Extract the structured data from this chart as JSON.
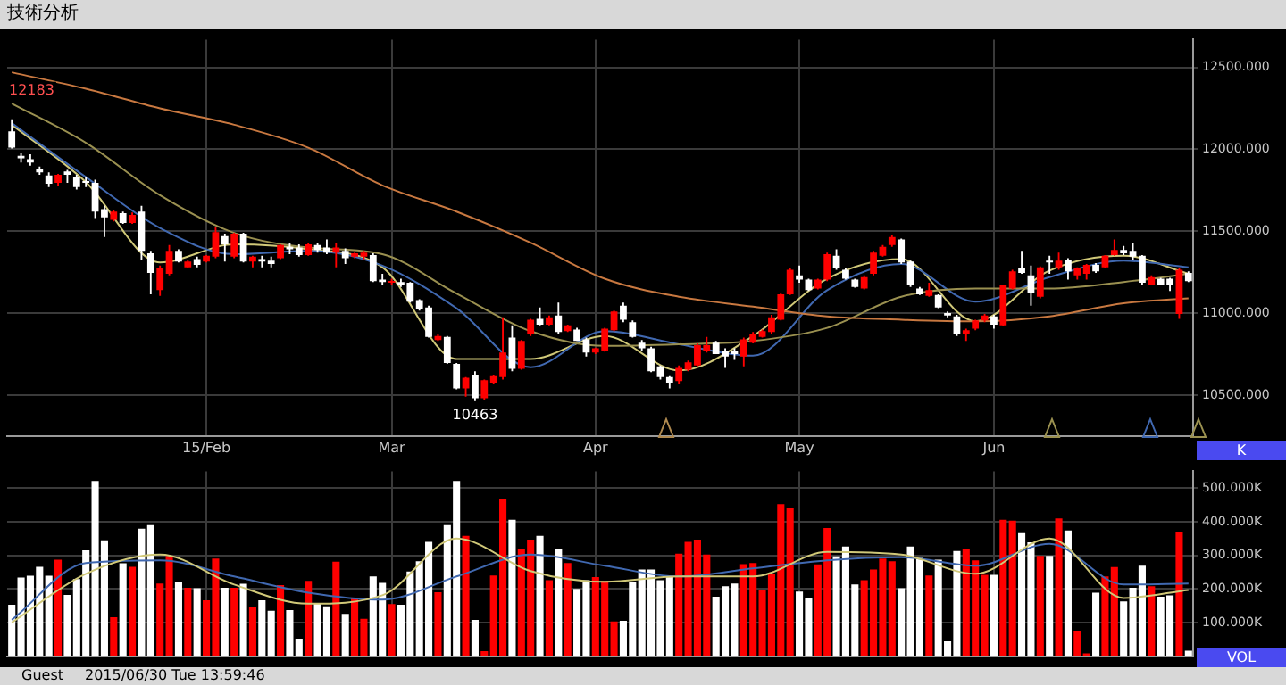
{
  "chart_data": [
    {
      "type": "candlestick",
      "title": "技術分析",
      "categories": [
        null,
        null,
        null,
        null,
        null,
        null,
        null,
        null,
        null,
        null,
        null,
        null,
        null,
        null,
        null,
        null,
        null,
        null,
        null,
        null,
        null,
        "15/Feb",
        null,
        null,
        null,
        null,
        null,
        null,
        null,
        null,
        null,
        null,
        null,
        null,
        null,
        null,
        null,
        null,
        null,
        null,
        null,
        "Mar",
        null,
        null,
        null,
        null,
        null,
        null,
        null,
        null,
        null,
        null,
        null,
        null,
        null,
        null,
        null,
        null,
        null,
        null,
        null,
        null,
        null,
        "Apr",
        null,
        null,
        null,
        null,
        null,
        null,
        null,
        null,
        null,
        null,
        null,
        null,
        null,
        null,
        null,
        null,
        null,
        null,
        null,
        null,
        null,
        "May",
        null,
        null,
        null,
        null,
        null,
        null,
        null,
        null,
        null,
        null,
        null,
        null,
        null,
        null,
        null,
        null,
        null,
        null,
        null,
        null,
        "Jun",
        null,
        null,
        null,
        null,
        null,
        null,
        null,
        null,
        null,
        null,
        null,
        null,
        null,
        null,
        null,
        null,
        null,
        null,
        null,
        null,
        null
      ],
      "ohlc": [
        [
          12110,
          12183,
          12005,
          12010
        ],
        [
          11960,
          11975,
          11920,
          11945
        ],
        [
          11940,
          11970,
          11900,
          11920
        ],
        [
          11880,
          11895,
          11845,
          11860
        ],
        [
          11840,
          11860,
          11770,
          11790
        ],
        [
          11795,
          11850,
          11775,
          11845
        ],
        [
          11865,
          11875,
          11795,
          11845
        ],
        [
          11830,
          11845,
          11755,
          11770
        ],
        [
          11805,
          11830,
          11770,
          11795
        ],
        [
          11795,
          11815,
          11580,
          11620
        ],
        [
          11635,
          11655,
          11465,
          11585
        ],
        [
          11570,
          11630,
          11560,
          11620
        ],
        [
          11610,
          11620,
          11545,
          11550
        ],
        [
          11550,
          11615,
          11545,
          11600
        ],
        [
          11620,
          11655,
          11325,
          11380
        ],
        [
          11365,
          11380,
          11115,
          11245
        ],
        [
          11140,
          11290,
          11105,
          11275
        ],
        [
          11240,
          11415,
          11230,
          11380
        ],
        [
          11380,
          11390,
          11310,
          11315
        ],
        [
          11280,
          11325,
          11275,
          11315
        ],
        [
          11330,
          11345,
          11280,
          11295
        ],
        [
          11315,
          11355,
          11310,
          11350
        ],
        [
          11345,
          11525,
          11335,
          11495
        ],
        [
          11470,
          11485,
          11315,
          11420
        ],
        [
          11345,
          11490,
          11335,
          11485
        ],
        [
          11485,
          11490,
          11310,
          11315
        ],
        [
          11315,
          11350,
          11280,
          11345
        ],
        [
          11330,
          11350,
          11280,
          11315
        ],
        [
          11320,
          11345,
          11280,
          11300
        ],
        [
          11335,
          11420,
          11330,
          11415
        ],
        [
          11405,
          11430,
          11360,
          11390
        ],
        [
          11400,
          11420,
          11345,
          11355
        ],
        [
          11355,
          11430,
          11350,
          11420
        ],
        [
          11415,
          11425,
          11370,
          11385
        ],
        [
          11400,
          11450,
          11360,
          11370
        ],
        [
          11370,
          11430,
          11280,
          11400
        ],
        [
          11380,
          11395,
          11300,
          11335
        ],
        [
          11345,
          11370,
          11335,
          11365
        ],
        [
          11345,
          11380,
          11325,
          11370
        ],
        [
          11355,
          11365,
          11190,
          11195
        ],
        [
          11205,
          11240,
          11175,
          11190
        ],
        [
          11185,
          11210,
          11170,
          11195
        ],
        [
          11190,
          11210,
          11160,
          11175
        ],
        [
          11185,
          11190,
          11065,
          11070
        ],
        [
          11080,
          11085,
          11015,
          11025
        ],
        [
          11035,
          11045,
          10850,
          10855
        ],
        [
          10835,
          10870,
          10830,
          10860
        ],
        [
          10855,
          10860,
          10690,
          10695
        ],
        [
          10690,
          10695,
          10535,
          10540
        ],
        [
          10540,
          10610,
          10490,
          10605
        ],
        [
          10625,
          10645,
          10463,
          10480
        ],
        [
          10480,
          10595,
          10470,
          10590
        ],
        [
          10575,
          10625,
          10570,
          10620
        ],
        [
          10610,
          10975,
          10595,
          10760
        ],
        [
          10850,
          10925,
          10645,
          10660
        ],
        [
          10660,
          10835,
          10655,
          10830
        ],
        [
          10870,
          10965,
          10860,
          10960
        ],
        [
          10965,
          11035,
          10925,
          10930
        ],
        [
          10930,
          10985,
          10925,
          10975
        ],
        [
          10985,
          11065,
          10875,
          10885
        ],
        [
          10890,
          10930,
          10885,
          10925
        ],
        [
          10900,
          10910,
          10830,
          10830
        ],
        [
          10840,
          10850,
          10735,
          10760
        ],
        [
          10760,
          10790,
          10750,
          10785
        ],
        [
          10770,
          10910,
          10765,
          10905
        ],
        [
          10895,
          11015,
          10890,
          11010
        ],
        [
          11045,
          11065,
          10945,
          10960
        ],
        [
          10945,
          10955,
          10850,
          10855
        ],
        [
          10820,
          10835,
          10770,
          10785
        ],
        [
          10785,
          10795,
          10640,
          10645
        ],
        [
          10675,
          10680,
          10595,
          10610
        ],
        [
          10610,
          10620,
          10540,
          10575
        ],
        [
          10585,
          10680,
          10570,
          10665
        ],
        [
          10655,
          10710,
          10645,
          10700
        ],
        [
          10680,
          10815,
          10675,
          10805
        ],
        [
          10770,
          10855,
          10760,
          10805
        ],
        [
          10820,
          10830,
          10750,
          10750
        ],
        [
          10770,
          10785,
          10665,
          10735
        ],
        [
          10770,
          10785,
          10715,
          10750
        ],
        [
          10735,
          10850,
          10675,
          10840
        ],
        [
          10820,
          10885,
          10815,
          10875
        ],
        [
          10855,
          10900,
          10850,
          10890
        ],
        [
          10885,
          10990,
          10875,
          10975
        ],
        [
          10960,
          11125,
          10955,
          11115
        ],
        [
          11115,
          11275,
          11110,
          11265
        ],
        [
          11230,
          11290,
          11185,
          11205
        ],
        [
          11205,
          11210,
          11135,
          11140
        ],
        [
          11150,
          11210,
          11145,
          11205
        ],
        [
          11205,
          11370,
          11195,
          11360
        ],
        [
          11350,
          11390,
          11265,
          11275
        ],
        [
          11265,
          11275,
          11205,
          11210
        ],
        [
          11205,
          11210,
          11155,
          11160
        ],
        [
          11150,
          11230,
          11145,
          11220
        ],
        [
          11240,
          11380,
          11230,
          11370
        ],
        [
          11350,
          11415,
          11345,
          11405
        ],
        [
          11415,
          11475,
          11405,
          11465
        ],
        [
          11450,
          11455,
          11300,
          11310
        ],
        [
          11315,
          11320,
          11160,
          11170
        ],
        [
          11150,
          11160,
          11110,
          11115
        ],
        [
          11105,
          11185,
          11100,
          11140
        ],
        [
          11110,
          11115,
          11030,
          11035
        ],
        [
          11000,
          11010,
          10975,
          10985
        ],
        [
          10980,
          10990,
          10860,
          10875
        ],
        [
          10875,
          10905,
          10830,
          10895
        ],
        [
          10905,
          10960,
          10895,
          10955
        ],
        [
          10955,
          10995,
          10945,
          10985
        ],
        [
          10980,
          10990,
          10905,
          10930
        ],
        [
          10925,
          11175,
          10920,
          11170
        ],
        [
          11150,
          11265,
          11145,
          11255
        ],
        [
          11275,
          11380,
          11240,
          11245
        ],
        [
          11230,
          11290,
          11045,
          11125
        ],
        [
          11100,
          11285,
          11090,
          11280
        ],
        [
          11320,
          11350,
          11240,
          11310
        ],
        [
          11280,
          11370,
          11265,
          11320
        ],
        [
          11325,
          11335,
          11205,
          11255
        ],
        [
          11230,
          11280,
          11205,
          11275
        ],
        [
          11240,
          11300,
          11205,
          11295
        ],
        [
          11295,
          11305,
          11245,
          11255
        ],
        [
          11280,
          11355,
          11275,
          11350
        ],
        [
          11355,
          11450,
          11350,
          11385
        ],
        [
          11385,
          11410,
          11355,
          11365
        ],
        [
          11380,
          11425,
          11325,
          11345
        ],
        [
          11350,
          11355,
          11175,
          11185
        ],
        [
          11175,
          11230,
          11170,
          11220
        ],
        [
          11210,
          11215,
          11170,
          11175
        ],
        [
          11210,
          11215,
          11135,
          11175
        ],
        [
          10995,
          11275,
          10965,
          11265
        ],
        [
          11245,
          11255,
          11190,
          11195
        ]
      ],
      "colors": [
        "#ffffff",
        "#ffffff",
        "#ffffff",
        "#ffffff",
        "#ffffff",
        "#ff0000",
        "#ffffff",
        "#ffffff",
        "#ffffff",
        "#ffffff",
        "#ffffff",
        "#ff0000",
        "#ffffff",
        "#ff0000",
        "#ffffff",
        "#ffffff",
        "#ff0000",
        "#ff0000",
        "#ffffff",
        "#ff0000",
        "#ffffff",
        "#ff0000",
        "#ff0000",
        "#ffffff",
        "#ff0000",
        "#ffffff",
        "#ff0000",
        "#ffffff",
        "#ffffff",
        "#ff0000",
        "#ffffff",
        "#ffffff",
        "#ff0000",
        "#ffffff",
        "#ffffff",
        "#ff0000",
        "#ffffff",
        "#ff0000",
        "#ff0000",
        "#ffffff",
        "#ffffff",
        "#ff0000",
        "#ffffff",
        "#ffffff",
        "#ffffff",
        "#ffffff",
        "#ff0000",
        "#ffffff",
        "#ffffff",
        "#ff0000",
        "#ffffff",
        "#ff0000",
        "#ff0000",
        "#ff0000",
        "#ffffff",
        "#ff0000",
        "#ff0000",
        "#ffffff",
        "#ff0000",
        "#ffffff",
        "#ff0000",
        "#ffffff",
        "#ffffff",
        "#ff0000",
        "#ff0000",
        "#ff0000",
        "#ffffff",
        "#ffffff",
        "#ffffff",
        "#ffffff",
        "#ffffff",
        "#ffffff",
        "#ff0000",
        "#ff0000",
        "#ff0000",
        "#ff0000",
        "#ffffff",
        "#ffffff",
        "#ffffff",
        "#ff0000",
        "#ff0000",
        "#ff0000",
        "#ff0000",
        "#ff0000",
        "#ff0000",
        "#ffffff",
        "#ffffff",
        "#ff0000",
        "#ff0000",
        "#ffffff",
        "#ffffff",
        "#ffffff",
        "#ff0000",
        "#ff0000",
        "#ff0000",
        "#ff0000",
        "#ffffff",
        "#ffffff",
        "#ffffff",
        "#ff0000",
        "#ffffff",
        "#ffffff",
        "#ffffff",
        "#ff0000",
        "#ff0000",
        "#ff0000",
        "#ffffff",
        "#ff0000",
        "#ff0000",
        "#ffffff",
        "#ffffff",
        "#ff0000",
        "#ffffff",
        "#ff0000",
        "#ffffff",
        "#ff0000",
        "#ff0000",
        "#ffffff",
        "#ff0000",
        "#ff0000",
        "#ffffff",
        "#ffffff",
        "#ffffff",
        "#ff0000",
        "#ffffff",
        "#ffffff",
        "#ff0000",
        "#ffffff"
      ],
      "series": [
        {
          "type": "line",
          "color": "#c87840",
          "values": [
            12470,
            null,
            null,
            null,
            null,
            null,
            null,
            null,
            12370,
            null,
            null,
            null,
            null,
            null,
            null,
            null,
            12250,
            null,
            null,
            null,
            null,
            null,
            null,
            null,
            12150,
            null,
            null,
            null,
            null,
            null,
            null,
            null,
            12010,
            null,
            null,
            null,
            null,
            null,
            null,
            null,
            11780,
            null,
            null,
            null,
            null,
            null,
            null,
            null,
            11620,
            null,
            null,
            null,
            null,
            null,
            null,
            null,
            11430,
            null,
            null,
            null,
            null,
            null,
            null,
            null,
            11210,
            null,
            null,
            null,
            null,
            null,
            null,
            null,
            11100,
            null,
            null,
            null,
            null,
            null,
            null,
            null,
            11040,
            null,
            null,
            null,
            null,
            null,
            null,
            null,
            10980,
            null,
            null,
            null,
            null,
            null,
            null,
            null,
            10960,
            null,
            null,
            null,
            null,
            null,
            null,
            null,
            10950,
            null,
            null,
            null,
            null,
            null,
            null,
            null,
            10980,
            null,
            null,
            null,
            null,
            null,
            null,
            null,
            11060,
            null,
            null,
            null,
            null,
            null,
            null,
            11090
          ]
        },
        {
          "type": "line",
          "color": "#9a9050",
          "values": [
            12280,
            null,
            null,
            null,
            null,
            null,
            null,
            null,
            12040,
            null,
            null,
            null,
            null,
            null,
            null,
            null,
            11720,
            null,
            null,
            null,
            null,
            null,
            null,
            null,
            11490,
            null,
            null,
            null,
            null,
            null,
            null,
            null,
            11400,
            null,
            null,
            null,
            null,
            null,
            null,
            null,
            11360,
            null,
            null,
            null,
            null,
            null,
            null,
            null,
            11120,
            null,
            null,
            null,
            null,
            null,
            null,
            null,
            10890,
            null,
            null,
            null,
            null,
            null,
            null,
            null,
            10800,
            null,
            null,
            null,
            null,
            null,
            null,
            null,
            10810,
            null,
            null,
            null,
            null,
            null,
            null,
            null,
            10830,
            null,
            null,
            null,
            null,
            null,
            null,
            null,
            10910,
            null,
            null,
            null,
            null,
            null,
            null,
            null,
            11100,
            null,
            null,
            null,
            null,
            null,
            null,
            null,
            11150,
            null,
            null,
            null,
            null,
            null,
            null,
            null,
            11150,
            null,
            null,
            null,
            null,
            null,
            null,
            null,
            11190,
            null,
            null,
            null,
            null,
            null,
            null,
            11240
          ]
        },
        {
          "type": "line",
          "color": "#4068b0",
          "values": [
            12160,
            null,
            null,
            null,
            null,
            null,
            null,
            null,
            11830,
            null,
            null,
            null,
            null,
            null,
            null,
            null,
            11520,
            null,
            null,
            null,
            null,
            null,
            null,
            null,
            11360,
            null,
            null,
            null,
            null,
            null,
            null,
            null,
            11380,
            null,
            null,
            null,
            null,
            null,
            null,
            null,
            11290,
            null,
            null,
            null,
            null,
            null,
            null,
            null,
            11030,
            null,
            null,
            null,
            null,
            null,
            null,
            null,
            10670,
            null,
            null,
            null,
            null,
            null,
            null,
            null,
            10890,
            null,
            null,
            null,
            null,
            null,
            null,
            null,
            10810,
            null,
            null,
            null,
            null,
            null,
            null,
            null,
            10740,
            null,
            null,
            null,
            null,
            null,
            null,
            null,
            11140,
            null,
            null,
            null,
            null,
            null,
            null,
            null,
            11300,
            null,
            null,
            null,
            null,
            null,
            null,
            null,
            11070,
            null,
            null,
            null,
            null,
            null,
            null,
            null,
            11220,
            null,
            null,
            null,
            null,
            null,
            null,
            null,
            11320,
            null,
            null,
            null,
            null,
            null,
            null,
            11280
          ]
        },
        {
          "type": "line",
          "color": "#d0c878",
          "values": [
            12150,
            null,
            null,
            null,
            null,
            null,
            null,
            null,
            11800,
            null,
            null,
            null,
            null,
            null,
            null,
            null,
            11310,
            null,
            null,
            null,
            null,
            null,
            null,
            null,
            11420,
            null,
            null,
            null,
            null,
            null,
            null,
            null,
            11390,
            null,
            null,
            null,
            null,
            null,
            null,
            null,
            11280,
            null,
            null,
            null,
            null,
            null,
            null,
            null,
            10720,
            null,
            null,
            null,
            null,
            null,
            null,
            null,
            10720,
            null,
            null,
            null,
            null,
            null,
            null,
            null,
            10860,
            null,
            null,
            null,
            null,
            null,
            null,
            null,
            10650,
            null,
            null,
            null,
            null,
            null,
            null,
            null,
            10860,
            null,
            null,
            null,
            null,
            null,
            null,
            null,
            11210,
            null,
            null,
            null,
            null,
            null,
            null,
            null,
            11330,
            null,
            null,
            null,
            null,
            null,
            null,
            null,
            10950,
            null,
            null,
            null,
            null,
            null,
            null,
            null,
            11260,
            null,
            null,
            null,
            null,
            null,
            null,
            null,
            11350,
            null,
            null,
            null,
            null,
            null,
            null,
            11240
          ]
        }
      ],
      "ylim": [
        10250,
        12670
      ],
      "yticks": [
        {
          "value": 10500,
          "label": "10500.000"
        },
        {
          "value": 11000,
          "label": "11000.000"
        },
        {
          "value": 11500,
          "label": "11500.000"
        },
        {
          "value": 12000,
          "label": "12000.000"
        },
        {
          "value": 12500,
          "label": "12500.000"
        }
      ],
      "grid": true,
      "annotations": [
        "K",
        "12183",
        "10463"
      ]
    },
    {
      "type": "bar",
      "categories": [
        null,
        null,
        null,
        null,
        null,
        null,
        null,
        null,
        null,
        null,
        null,
        null,
        null,
        null,
        null,
        null,
        null,
        null,
        null,
        null,
        null,
        null,
        null,
        null,
        null,
        null,
        null,
        null,
        null,
        null,
        null,
        null,
        null,
        null,
        null,
        null,
        null,
        null,
        null,
        null,
        null,
        null,
        null,
        null,
        null,
        null,
        null,
        null,
        null,
        null,
        null,
        null,
        null,
        null,
        null,
        null,
        null,
        null,
        null,
        null,
        null,
        null,
        null,
        null,
        null,
        null,
        null,
        null,
        null,
        null,
        null,
        null,
        null,
        null,
        null,
        null,
        null,
        null,
        null,
        null,
        null,
        null,
        null,
        null,
        null,
        null,
        null,
        null,
        null,
        null,
        null,
        null,
        null,
        null,
        null,
        null,
        null,
        null,
        null,
        null,
        null,
        null,
        null,
        null,
        null,
        null,
        null,
        null,
        null,
        null,
        null,
        null,
        null,
        null,
        null,
        null,
        null,
        null,
        null,
        null,
        null,
        null,
        null,
        null,
        null,
        null,
        null,
        null
      ],
      "values": [
        153,
        234,
        239,
        266,
        239,
        287,
        182,
        229,
        315,
        521,
        345,
        116,
        276,
        266,
        379,
        390,
        216,
        298,
        219,
        203,
        202,
        166,
        290,
        203,
        203,
        215,
        145,
        166,
        135,
        211,
        137,
        52,
        224,
        158,
        148,
        281,
        126,
        174,
        111,
        237,
        218,
        155,
        153,
        252,
        282,
        340,
        190,
        390,
        521,
        358,
        108,
        15,
        240,
        468,
        406,
        319,
        347,
        358,
        226,
        318,
        277,
        200,
        226,
        235,
        223,
        103,
        105,
        219,
        258,
        258,
        226,
        237,
        305,
        340,
        347,
        302,
        177,
        208,
        216,
        274,
        277,
        198,
        245,
        452,
        440,
        192,
        173,
        273,
        381,
        297,
        326,
        213,
        226,
        258,
        290,
        282,
        202,
        326,
        292,
        240,
        287,
        44,
        313,
        318,
        285,
        242,
        242,
        406,
        403,
        366,
        339,
        298,
        298,
        410,
        374,
        73,
        8,
        189,
        237,
        265,
        163,
        203,
        269,
        208,
        177,
        181,
        369,
        16
      ],
      "colors": [
        "#ffffff",
        "#ffffff",
        "#ffffff",
        "#ffffff",
        "#ffffff",
        "#ff0000",
        "#ffffff",
        "#ffffff",
        "#ffffff",
        "#ffffff",
        "#ffffff",
        "#ff0000",
        "#ffffff",
        "#ff0000",
        "#ffffff",
        "#ffffff",
        "#ff0000",
        "#ff0000",
        "#ffffff",
        "#ff0000",
        "#ffffff",
        "#ff0000",
        "#ff0000",
        "#ffffff",
        "#ff0000",
        "#ffffff",
        "#ff0000",
        "#ffffff",
        "#ffffff",
        "#ff0000",
        "#ffffff",
        "#ffffff",
        "#ff0000",
        "#ffffff",
        "#ffffff",
        "#ff0000",
        "#ffffff",
        "#ff0000",
        "#ff0000",
        "#ffffff",
        "#ffffff",
        "#ff0000",
        "#ffffff",
        "#ffffff",
        "#ffffff",
        "#ffffff",
        "#ff0000",
        "#ffffff",
        "#ffffff",
        "#ff0000",
        "#ffffff",
        "#ff0000",
        "#ff0000",
        "#ff0000",
        "#ffffff",
        "#ff0000",
        "#ff0000",
        "#ffffff",
        "#ff0000",
        "#ffffff",
        "#ff0000",
        "#ffffff",
        "#ffffff",
        "#ff0000",
        "#ff0000",
        "#ff0000",
        "#ffffff",
        "#ffffff",
        "#ffffff",
        "#ffffff",
        "#ffffff",
        "#ffffff",
        "#ff0000",
        "#ff0000",
        "#ff0000",
        "#ff0000",
        "#ffffff",
        "#ffffff",
        "#ffffff",
        "#ff0000",
        "#ff0000",
        "#ff0000",
        "#ff0000",
        "#ff0000",
        "#ff0000",
        "#ffffff",
        "#ffffff",
        "#ff0000",
        "#ff0000",
        "#ffffff",
        "#ffffff",
        "#ffffff",
        "#ff0000",
        "#ff0000",
        "#ff0000",
        "#ff0000",
        "#ffffff",
        "#ffffff",
        "#ffffff",
        "#ff0000",
        "#ffffff",
        "#ffffff",
        "#ffffff",
        "#ff0000",
        "#ff0000",
        "#ff0000",
        "#ffffff",
        "#ff0000",
        "#ff0000",
        "#ffffff",
        "#ffffff",
        "#ff0000",
        "#ffffff",
        "#ff0000",
        "#ffffff",
        "#ff0000",
        "#ff0000",
        "#ffffff",
        "#ff0000",
        "#ff0000",
        "#ffffff",
        "#ffffff",
        "#ffffff",
        "#ff0000",
        "#ffffff",
        "#ffffff",
        "#ff0000",
        "#ffffff"
      ],
      "series": [
        {
          "type": "line",
          "color": "#d0c878",
          "values": [
            100,
            null,
            null,
            null,
            null,
            null,
            null,
            null,
            245,
            null,
            null,
            null,
            null,
            null,
            null,
            null,
            302,
            null,
            null,
            null,
            null,
            null,
            null,
            null,
            213,
            null,
            null,
            null,
            null,
            null,
            null,
            null,
            156,
            null,
            null,
            null,
            null,
            null,
            null,
            null,
            181,
            null,
            null,
            null,
            null,
            null,
            null,
            null,
            350,
            null,
            null,
            null,
            null,
            null,
            null,
            null,
            253,
            null,
            null,
            null,
            null,
            null,
            null,
            null,
            221,
            null,
            null,
            null,
            null,
            null,
            null,
            null,
            237,
            null,
            null,
            null,
            null,
            null,
            null,
            null,
            237,
            null,
            null,
            null,
            null,
            null,
            null,
            null,
            310,
            null,
            null,
            null,
            null,
            null,
            null,
            null,
            302,
            null,
            null,
            null,
            null,
            null,
            null,
            null,
            245,
            null,
            null,
            null,
            null,
            null,
            null,
            null,
            350,
            null,
            null,
            null,
            null,
            null,
            null,
            null,
            173,
            null,
            null,
            null,
            null,
            null,
            null,
            197
          ]
        },
        {
          "type": "line",
          "color": "#4068b0",
          "values": [
            108,
            null,
            null,
            null,
            null,
            null,
            null,
            null,
            277,
            null,
            null,
            null,
            null,
            null,
            null,
            null,
            285,
            null,
            null,
            null,
            null,
            null,
            null,
            null,
            237,
            null,
            null,
            null,
            null,
            null,
            null,
            null,
            189,
            null,
            null,
            null,
            null,
            null,
            null,
            null,
            168,
            null,
            null,
            null,
            null,
            null,
            null,
            null,
            237,
            null,
            null,
            null,
            null,
            null,
            null,
            null,
            302,
            null,
            null,
            null,
            null,
            null,
            null,
            null,
            269,
            null,
            null,
            null,
            null,
            null,
            null,
            null,
            237,
            null,
            null,
            null,
            null,
            null,
            null,
            null,
            261,
            null,
            null,
            null,
            null,
            null,
            null,
            null,
            285,
            null,
            null,
            null,
            null,
            null,
            null,
            null,
            294,
            null,
            null,
            null,
            null,
            null,
            null,
            null,
            269,
            null,
            null,
            null,
            null,
            null,
            null,
            null,
            334,
            null,
            null,
            null,
            null,
            null,
            null,
            null,
            213,
            null,
            null,
            null,
            null,
            null,
            null,
            216
          ]
        }
      ],
      "ylim": [
        0,
        550
      ],
      "yticks": [
        {
          "value": 100,
          "label": "100.000K"
        },
        {
          "value": 200,
          "label": "200.000K"
        },
        {
          "value": 300,
          "label": "300.000K"
        },
        {
          "value": 400,
          "label": "400.000K"
        },
        {
          "value": 500,
          "label": "500.000K"
        }
      ],
      "grid": true,
      "tick_labels": "y",
      "annotations": [
        "VOL",
        "Guest",
        "2015/06/30 Tue 13:59:46"
      ]
    }
  ]
}
